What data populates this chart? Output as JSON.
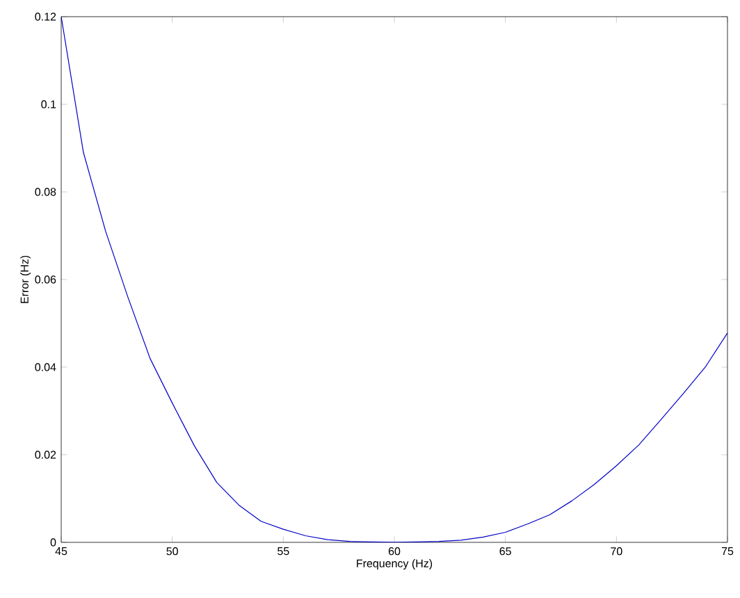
{
  "chart_data": {
    "type": "line",
    "xlabel": "Frequency (Hz)",
    "ylabel": "Error (Hz)",
    "x": [
      45,
      46,
      47,
      48,
      49,
      50,
      51,
      52,
      53,
      54,
      55,
      56,
      57,
      58,
      59,
      60,
      61,
      62,
      63,
      64,
      65,
      66,
      67,
      68,
      69,
      70,
      71,
      72,
      73,
      74,
      75
    ],
    "series": [
      {
        "color": "#0000c8",
        "values": [
          0.12,
          0.089,
          0.071,
          0.056,
          0.042,
          0.0318,
          0.022,
          0.0137,
          0.0085,
          0.0048,
          0.003,
          0.0015,
          0.0006,
          0.0002,
          0.0001,
          0,
          0.0001,
          0.0002,
          0.0005,
          0.0012,
          0.0023,
          0.0042,
          0.0063,
          0.0095,
          0.0132,
          0.0175,
          0.0222,
          0.028,
          0.0339,
          0.04,
          0.0478
        ]
      }
    ],
    "xlim": [
      45,
      75
    ],
    "ylim": [
      0,
      0.12
    ],
    "xticks": [
      45,
      50,
      55,
      60,
      65,
      70,
      75
    ],
    "yticks": [
      0,
      0.02,
      0.04,
      0.06,
      0.08,
      0.1,
      0.12
    ],
    "grid": false
  }
}
